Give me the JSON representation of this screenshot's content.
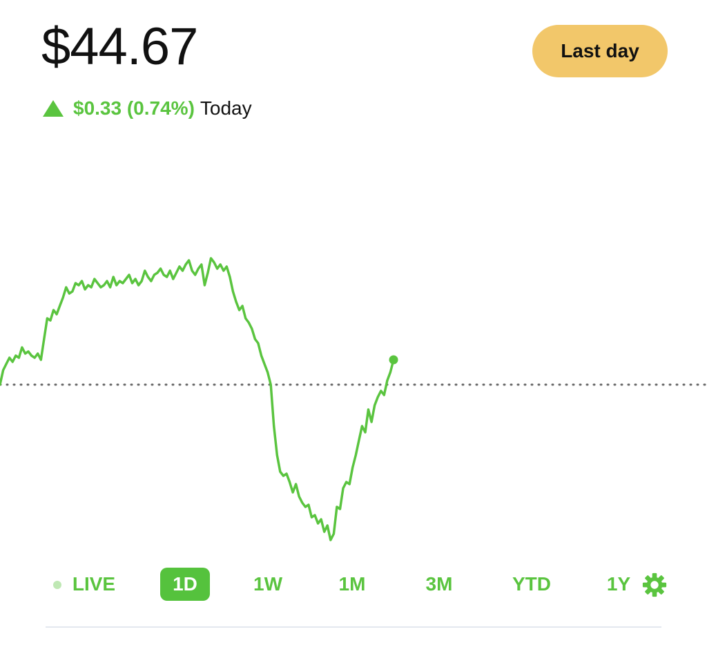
{
  "quote": {
    "price": "$44.67",
    "change_value": "$0.33 (0.74%)",
    "change_period": "Today",
    "range_button_label": "Last day"
  },
  "chart_data": {
    "type": "line",
    "series_color": "#5ac43f",
    "baseline_style": "dotted",
    "current_point_marker": true,
    "points": [
      0,
      7,
      10,
      13,
      11,
      14,
      13,
      18,
      15,
      16,
      14,
      13,
      15,
      12,
      22,
      32,
      31,
      36,
      34,
      38,
      42,
      47,
      44,
      45,
      49,
      48,
      50,
      46,
      48,
      47,
      51,
      49,
      47,
      48,
      50,
      47,
      52,
      48,
      50,
      49,
      51,
      53,
      49,
      51,
      48,
      50,
      55,
      52,
      50,
      53,
      54,
      56,
      53,
      52,
      55,
      51,
      54,
      57,
      55,
      58,
      60,
      55,
      53,
      56,
      58,
      48,
      54,
      61,
      59,
      56,
      58,
      55,
      57,
      52,
      45,
      40,
      36,
      38,
      32,
      30,
      27,
      22,
      20,
      14,
      10,
      6,
      0,
      -20,
      -34,
      -42,
      -44,
      -43,
      -47,
      -52,
      -48,
      -54,
      -57,
      -59,
      -58,
      -64,
      -63,
      -67,
      -65,
      -71,
      -68,
      -75,
      -72,
      -59,
      -60,
      -50,
      -47,
      -48,
      -40,
      -34,
      -27,
      -20,
      -23,
      -12,
      -18,
      -10,
      -6,
      -3,
      -5,
      2,
      6,
      12
    ],
    "baseline_index_hint": 0
  },
  "timeframes": {
    "live": "LIVE",
    "d1": "1D",
    "w1": "1W",
    "m1": "1M",
    "m3": "3M",
    "ytd": "YTD",
    "y1": "1Y"
  },
  "icons": {
    "change_direction": "up-triangle-icon",
    "settings": "gear-icon",
    "live_indicator": "dot-icon"
  },
  "colors": {
    "accent_green": "#5ac43f",
    "range_button_bg": "#f2c76a",
    "divider": "#e3e8ef"
  }
}
